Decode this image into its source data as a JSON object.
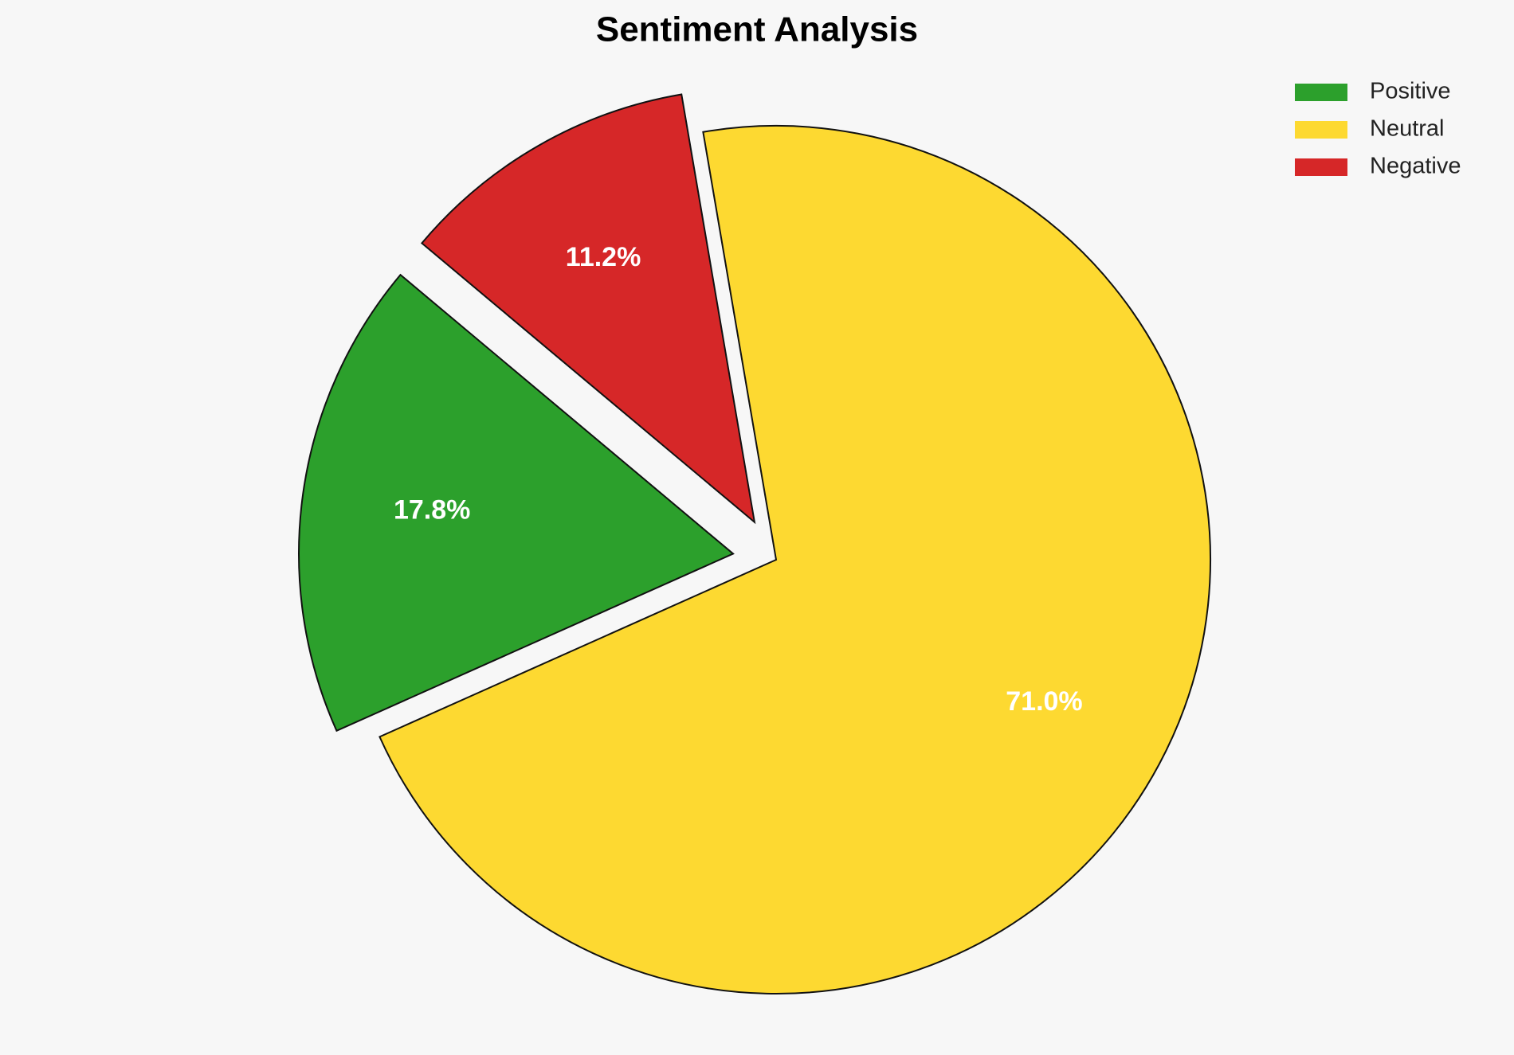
{
  "chart_data": {
    "type": "pie",
    "title": "Sentiment Analysis",
    "categories": [
      "Positive",
      "Neutral",
      "Negative"
    ],
    "values": [
      17.8,
      71.0,
      11.2
    ],
    "value_labels": [
      "17.8%",
      "71.0%",
      "11.2%"
    ],
    "colors": [
      "#2ca02c",
      "#fdd931",
      "#d62728"
    ],
    "start_angle": 140,
    "explode": [
      0.1,
      0,
      0.1
    ],
    "legend": "upper right"
  }
}
